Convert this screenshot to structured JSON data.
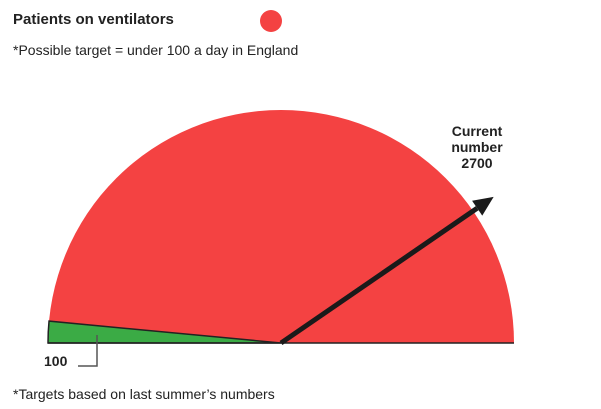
{
  "chart_data": {
    "type": "gauge",
    "title": "Patients on ventilators",
    "subtitle": "*Possible target = under 100 a day in England",
    "footnote": "*Targets based on last summer’s numbers",
    "ylim": [
      0,
      3340
    ],
    "color": "#f44242",
    "target": {
      "value": 100,
      "color": "#3bab45"
    },
    "current": {
      "label": "Current number",
      "value": 2700,
      "color": "#1a1a1a"
    }
  }
}
